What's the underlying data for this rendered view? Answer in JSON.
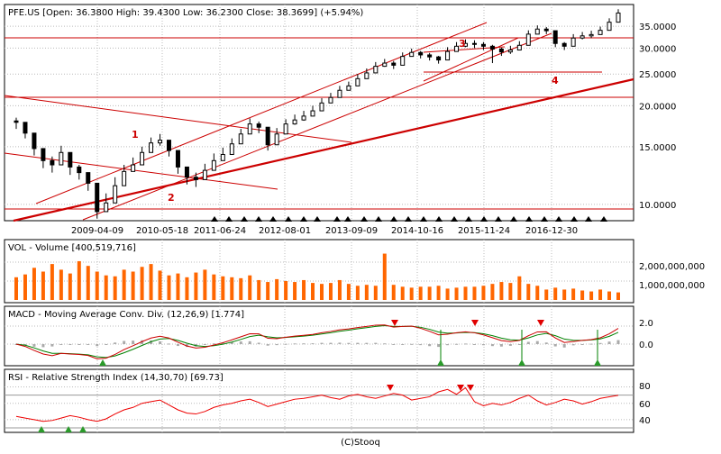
{
  "chart_data": [
    {
      "type": "candlestick",
      "title": "PFE.US [Open: 36.3800  High: 39.4300  Low: 36.2300  Close: 38.3699] (+5.94%)",
      "yscale": "log",
      "ylim": [
        9.2,
        40
      ],
      "y_ticks": [
        10,
        15,
        20,
        25,
        30,
        35
      ],
      "y_tick_labels": [
        "10.0000",
        "15.0000",
        "20.0000",
        "25.0000",
        "30.0000",
        "35.0000"
      ],
      "x_tick_labels": [
        "2009-04-09",
        "2010-05-18",
        "2011-06-24",
        "2012-08-01",
        "2013-09-09",
        "2014-10-16",
        "2015-11-24",
        "2016-12-30"
      ],
      "closes": [
        17.8,
        16.5,
        14.8,
        13.6,
        13.2,
        14.4,
        13.0,
        12.5,
        11.6,
        9.5,
        10.1,
        11.4,
        12.6,
        13.2,
        14.4,
        15.4,
        15.7,
        14.6,
        13.0,
        12.1,
        11.9,
        12.7,
        13.6,
        14.2,
        15.3,
        16.4,
        17.6,
        17.2,
        15.2,
        16.4,
        17.6,
        18.1,
        18.6,
        19.3,
        20.4,
        21.2,
        22.3,
        23.0,
        24.2,
        25.2,
        26.4,
        27.0,
        26.6,
        28.3,
        29.1,
        28.6,
        28.2,
        27.6,
        29.3,
        30.4,
        31.0,
        30.8,
        30.4,
        29.8,
        29.2,
        29.6,
        30.6,
        33.1,
        34.3,
        33.9,
        31.0,
        30.4,
        32.2,
        32.7,
        33.0,
        34.0,
        36.0,
        38.4
      ],
      "highs": [
        18.4,
        17.3,
        15.6,
        14.5,
        14.0,
        15.1,
        13.8,
        13.2,
        12.4,
        10.6,
        10.8,
        12.1,
        13.2,
        13.9,
        15.0,
        16.0,
        16.4,
        15.3,
        13.8,
        12.8,
        12.5,
        13.3,
        14.3,
        14.9,
        15.9,
        17.0,
        18.3,
        17.9,
        16.0,
        17.1,
        18.2,
        18.8,
        19.3,
        20.0,
        21.1,
        21.9,
        23.0,
        23.7,
        25.0,
        26.0,
        27.2,
        27.8,
        27.4,
        29.1,
        29.9,
        29.4,
        29.0,
        28.4,
        30.2,
        31.3,
        31.9,
        31.7,
        31.3,
        30.7,
        30.1,
        30.5,
        31.5,
        34.0,
        35.2,
        34.8,
        31.9,
        31.3,
        33.1,
        33.6,
        33.9,
        34.9,
        37.0,
        39.43
      ],
      "lows": [
        17.0,
        15.9,
        14.1,
        12.9,
        12.5,
        13.8,
        12.3,
        11.9,
        11.0,
        9.05,
        9.6,
        10.8,
        12.0,
        12.6,
        13.8,
        14.8,
        15.1,
        14.0,
        12.4,
        11.5,
        11.3,
        12.1,
        13.0,
        13.6,
        14.7,
        15.8,
        16.9,
        16.5,
        14.6,
        15.8,
        17.0,
        17.5,
        18.0,
        18.7,
        19.8,
        20.6,
        21.7,
        22.4,
        23.5,
        24.5,
        25.7,
        26.3,
        25.9,
        27.6,
        28.4,
        27.9,
        27.5,
        26.9,
        28.5,
        29.6,
        30.2,
        30.0,
        29.6,
        27.0,
        28.4,
        28.8,
        29.8,
        32.3,
        33.5,
        33.1,
        30.2,
        29.6,
        31.4,
        31.9,
        32.2,
        33.2,
        35.2,
        36.23
      ]
    },
    {
      "type": "bar",
      "title": "VOL - Volume [400,519,716]",
      "y_tick_labels": [
        "1,000,000,000",
        "2,000,000,000"
      ],
      "values": [
        1.2,
        1.35,
        1.7,
        1.5,
        1.9,
        1.6,
        1.4,
        2.05,
        1.8,
        1.5,
        1.3,
        1.25,
        1.6,
        1.5,
        1.75,
        1.9,
        1.55,
        1.3,
        1.4,
        1.2,
        1.45,
        1.6,
        1.35,
        1.25,
        1.2,
        1.15,
        1.3,
        1.05,
        0.95,
        1.1,
        1.0,
        0.95,
        1.05,
        0.9,
        0.85,
        0.9,
        1.05,
        0.85,
        0.75,
        0.8,
        0.75,
        2.45,
        0.8,
        0.7,
        0.65,
        0.7,
        0.7,
        0.75,
        0.6,
        0.65,
        0.7,
        0.7,
        0.75,
        0.85,
        0.95,
        0.9,
        1.25,
        0.85,
        0.75,
        0.55,
        0.65,
        0.55,
        0.6,
        0.5,
        0.45,
        0.55,
        0.45,
        0.4
      ]
    },
    {
      "type": "line",
      "title": "MACD - Moving Average Conv. Div. (12,26,9) [1.774]",
      "y_tick_labels": [
        "0.0",
        "2.0"
      ]
    },
    {
      "type": "line",
      "title": "RSI - Relative Strength Index (14,30,70) [69.73]",
      "y_tick_labels": [
        "40",
        "60",
        "80"
      ],
      "values": [
        44,
        42,
        40,
        38,
        39,
        42,
        45,
        43,
        40,
        38,
        41,
        47,
        52,
        55,
        60,
        62,
        64,
        58,
        52,
        48,
        47,
        50,
        55,
        58,
        60,
        63,
        65,
        61,
        56,
        59,
        62,
        65,
        66,
        68,
        70,
        67,
        65,
        69,
        71,
        68,
        66,
        69,
        72,
        70,
        64,
        66,
        68,
        74,
        77,
        71,
        79,
        62,
        57,
        60,
        58,
        61,
        66,
        70,
        63,
        58,
        61,
        65,
        63,
        59,
        62,
        66,
        68,
        69.73
      ]
    }
  ],
  "annotations": {
    "labels": [
      "1",
      "2",
      "3",
      "4"
    ]
  },
  "footer": "(C)Stooq",
  "colors": {
    "bar": "#ff6600",
    "trend": "#cc0000",
    "macd": "#cc0000",
    "signal": "#008000",
    "hist": "#aaaaaa",
    "rsi": "#ee0000"
  }
}
